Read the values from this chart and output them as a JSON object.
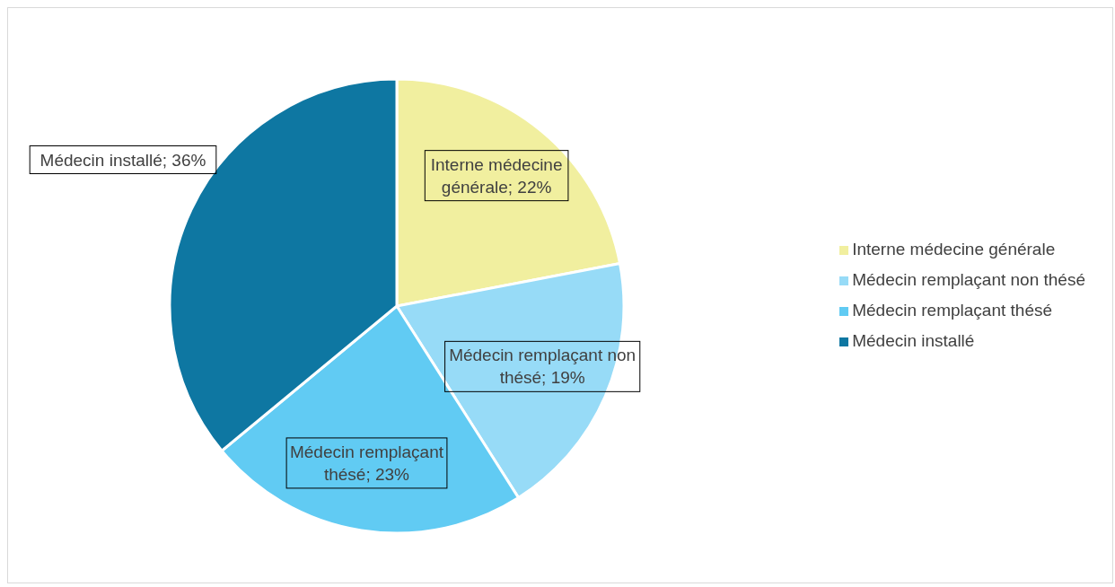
{
  "chart_data": {
    "type": "pie",
    "categories": [
      "Interne médecine générale",
      "Médecin remplaçant non thésé",
      "Médecin remplaçant thésé",
      "Médecin installé"
    ],
    "values": [
      22,
      19,
      23,
      36
    ],
    "colors": [
      "#f1ef9f",
      "#97dbf7",
      "#61cbf3",
      "#0e77a2"
    ],
    "value_labels": [
      "Interne médecine générale; 22%",
      "Médecin remplaçant non thésé; 19%",
      "Médecin remplaçant thésé; 23%",
      "Médecin installé; 36%"
    ],
    "legend": "right"
  }
}
